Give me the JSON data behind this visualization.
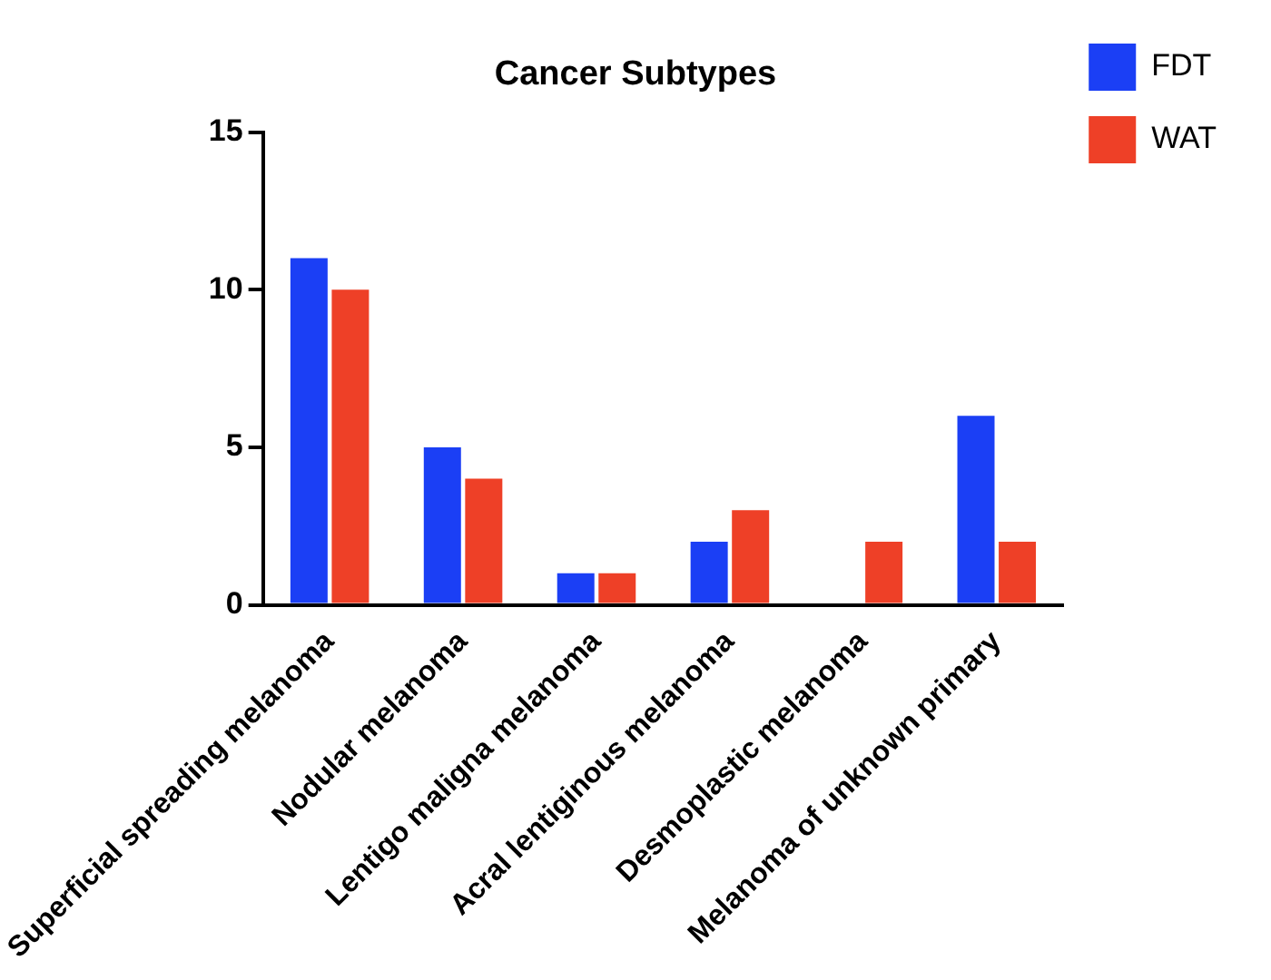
{
  "chart_data": {
    "type": "bar",
    "title": "Cancer Subtypes",
    "categories": [
      "Superficial spreading melanoma",
      "Nodular melanoma",
      "Lentigo maligna melanoma",
      "Acral lentiginous melanoma",
      "Desmoplastic melanoma",
      "Melanoma of unknown primary"
    ],
    "series": [
      {
        "name": "FDT",
        "color": "#1b3ff5",
        "values": [
          11,
          5,
          1,
          2,
          0,
          6
        ]
      },
      {
        "name": "WAT",
        "color": "#ee4027",
        "values": [
          10,
          4,
          1,
          3,
          2,
          2
        ]
      }
    ],
    "ylim": [
      0,
      15
    ],
    "yticks": [
      0,
      5,
      10,
      15
    ],
    "grid": false,
    "legend": "top right"
  }
}
